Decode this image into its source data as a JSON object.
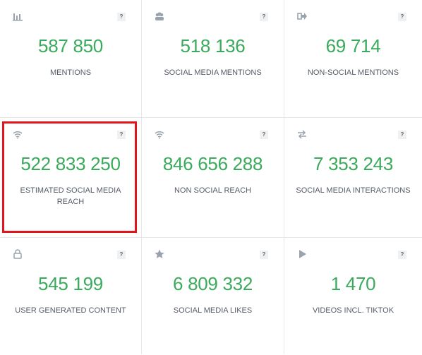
{
  "cards": [
    {
      "value": "587 850",
      "label": "MENTIONS",
      "help": "?"
    },
    {
      "value": "518 136",
      "label": "SOCIAL MEDIA MENTIONS",
      "help": "?"
    },
    {
      "value": "69 714",
      "label": "NON-SOCIAL MENTIONS",
      "help": "?"
    },
    {
      "value": "522 833 250",
      "label": "ESTIMATED SOCIAL MEDIA REACH",
      "help": "?"
    },
    {
      "value": "846 656 288",
      "label": "NON SOCIAL REACH",
      "help": "?"
    },
    {
      "value": "7 353 243",
      "label": "SOCIAL MEDIA INTERACTIONS",
      "help": "?"
    },
    {
      "value": "545 199",
      "label": "USER GENERATED CONTENT",
      "help": "?"
    },
    {
      "value": "6 809 332",
      "label": "SOCIAL MEDIA LIKES",
      "help": "?"
    },
    {
      "value": "1 470",
      "label": "VIDEOS INCL. TIKTOK",
      "help": "?"
    }
  ]
}
